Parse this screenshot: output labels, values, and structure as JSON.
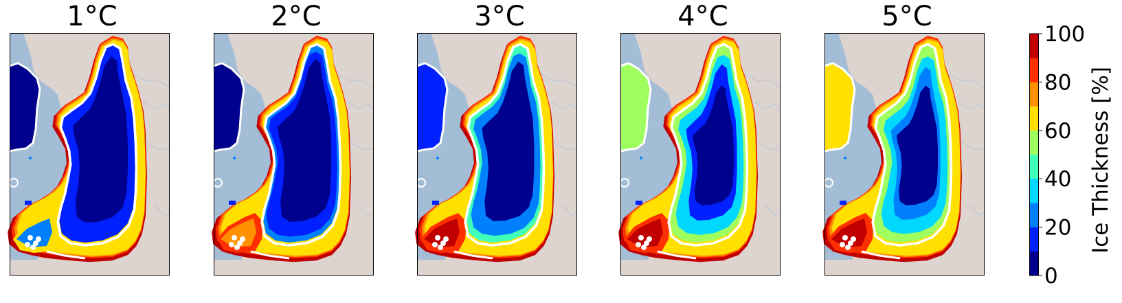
{
  "chart_data": {
    "type": "heatmap",
    "panels": [
      {
        "title": "1$^\\circ$C",
        "label": "1",
        "unit": "°C",
        "level": 0.0
      },
      {
        "title": "2$^\\circ$C",
        "label": "2",
        "unit": "°C",
        "level": 0.25
      },
      {
        "title": "3$^\\circ$C",
        "label": "3",
        "unit": "°C",
        "level": 0.5
      },
      {
        "title": "4$^\\circ$C",
        "label": "4",
        "unit": "°C",
        "level": 0.75
      },
      {
        "title": "5$^\\circ$C",
        "label": "5",
        "unit": "°C",
        "level": 1.0
      }
    ],
    "colorbar": {
      "label": "Ice Thickness [%]",
      "range": [
        0,
        100
      ],
      "ticks": [
        "0",
        "20",
        "40",
        "60",
        "80",
        "100"
      ],
      "levels": [
        0,
        10,
        20,
        30,
        40,
        50,
        60,
        70,
        80,
        90,
        100
      ],
      "colors": [
        "#00008f",
        "#0020ff",
        "#0080ff",
        "#00d8ff",
        "#40ffb8",
        "#a0ff60",
        "#ffe000",
        "#ff9000",
        "#ff3000",
        "#c00000"
      ]
    },
    "colors": {
      "ocean": "#a3bdd6",
      "land": "#ddd3cf",
      "outline": "#ffffff"
    }
  }
}
